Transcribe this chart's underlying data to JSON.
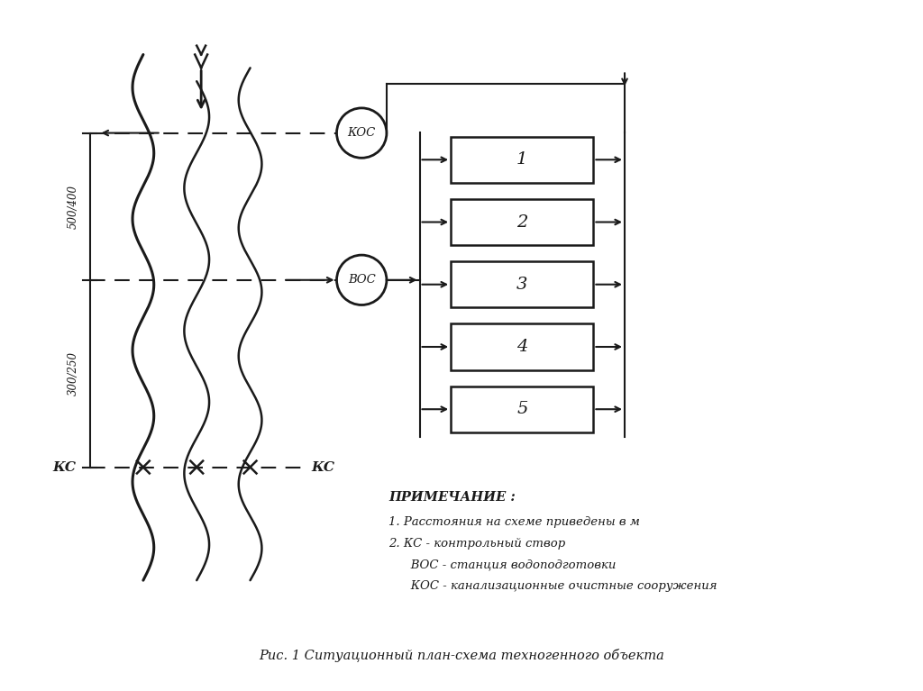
{
  "bg_color": "#ffffff",
  "line_color": "#1a1a1a",
  "title": "Рис. 1 Ситуационный план-схема техногенного объекта",
  "note_title": "ПРИМЕЧАНИЕ :",
  "note_line1": "1. Расстояния на схеме приведены в м",
  "note_line2": "2. КС - контрольный створ",
  "note_line3": "   ВОС - станция водоподготовки",
  "note_line4": "   КОС - канализационные очистные сооружения",
  "box_labels": [
    "1",
    "2",
    "3",
    "4",
    "5"
  ],
  "kos_label": "КОС",
  "vos_label": "ВОС",
  "ks_label": "КС",
  "dim_label1": "500/400",
  "dim_label2": "300/250"
}
